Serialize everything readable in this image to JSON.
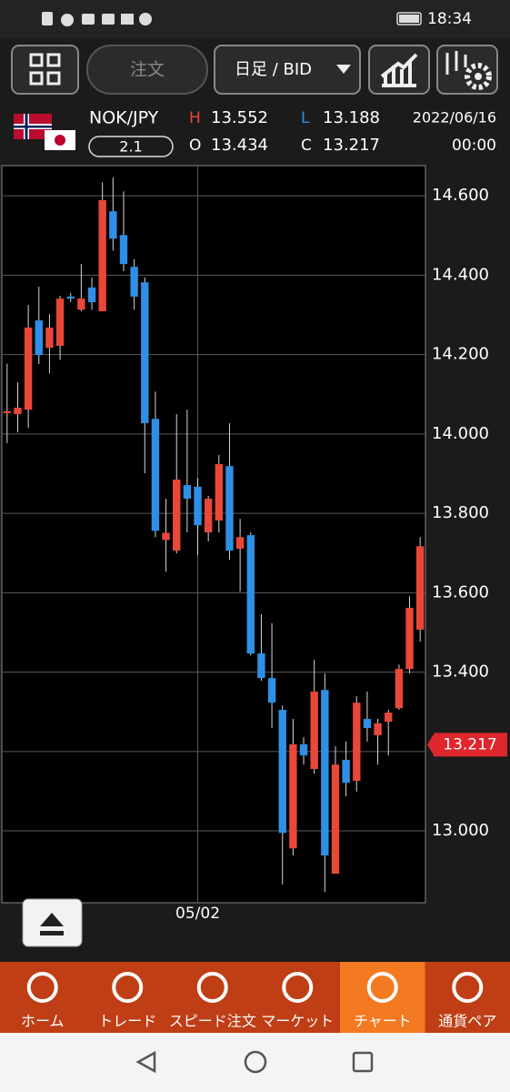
{
  "status_bar": {
    "time": "18:34"
  },
  "toolbar": {
    "order": "注文",
    "period": "日足 / BID"
  },
  "quote": {
    "pair": "NOK/JPY",
    "spread": "2.1",
    "high_label": "H",
    "high": "13.552",
    "low_label": "L",
    "low": "13.188",
    "open_label": "O",
    "open": "13.434",
    "close_label": "C",
    "close": "13.217",
    "date": "2022/06/16",
    "time": "00:00"
  },
  "chart_data": {
    "type": "candlestick",
    "categories": [
      null,
      null,
      null,
      null,
      null,
      null,
      null,
      null,
      null,
      null,
      null,
      null,
      null,
      null,
      null,
      null,
      null,
      null,
      "05/02",
      null,
      null,
      null,
      null,
      null,
      null,
      null,
      null,
      null,
      null,
      null,
      null,
      null,
      null,
      null,
      null,
      null,
      null,
      null,
      null,
      null
    ],
    "open": [
      14.057,
      14.05,
      14.061,
      14.286,
      14.217,
      14.222,
      14.346,
      14.313,
      14.369,
      14.309,
      14.561,
      14.501,
      14.421,
      14.382,
      14.038,
      13.733,
      13.706,
      13.871,
      13.867,
      13.752,
      13.782,
      13.919,
      13.711,
      13.745,
      13.447,
      13.385,
      13.305,
      12.956,
      13.218,
      13.156,
      13.355,
      12.892,
      13.179,
      13.126,
      13.282,
      13.241,
      13.275,
      13.309,
      13.408,
      13.507
    ],
    "high": [
      14.177,
      14.13,
      14.325,
      14.371,
      14.302,
      14.348,
      14.355,
      14.428,
      14.394,
      14.634,
      14.646,
      14.611,
      14.44,
      14.394,
      14.107,
      13.837,
      14.05,
      14.061,
      13.889,
      13.844,
      13.947,
      14.027,
      13.786,
      13.752,
      13.546,
      13.523,
      13.316,
      13.282,
      13.236,
      13.431,
      13.397,
      13.213,
      13.225,
      13.339,
      13.351,
      13.282,
      13.305,
      13.419,
      13.591,
      13.74
    ],
    "low": [
      13.977,
      14.004,
      14.015,
      14.176,
      14.153,
      14.187,
      14.332,
      14.309,
      14.313,
      14.309,
      14.462,
      14.41,
      14.313,
      13.901,
      13.74,
      13.653,
      13.699,
      13.752,
      13.695,
      13.729,
      13.752,
      13.683,
      13.603,
      13.442,
      13.378,
      13.259,
      12.865,
      12.938,
      13.167,
      13.144,
      12.846,
      12.892,
      13.087,
      13.099,
      13.225,
      13.167,
      13.19,
      13.305,
      13.397,
      13.477
    ],
    "close": [
      14.057,
      14.066,
      14.268,
      14.199,
      14.268,
      14.341,
      14.341,
      14.341,
      14.332,
      14.589,
      14.492,
      14.428,
      14.346,
      14.027,
      13.756,
      13.751,
      13.885,
      13.837,
      13.77,
      13.837,
      13.924,
      13.706,
      13.74,
      13.447,
      13.385,
      13.323,
      12.995,
      13.218,
      13.19,
      13.351,
      12.938,
      13.167,
      13.121,
      13.323,
      13.259,
      13.271,
      13.298,
      13.408,
      13.562,
      13.717
    ],
    "up_color": "#e8473a",
    "down_color": "#2f8fe6",
    "ylim": [
      12.819,
      14.676
    ],
    "yticks": [
      {
        "value": 13.0,
        "label": "13.000"
      },
      {
        "value": 13.2,
        "label": "13.200"
      },
      {
        "value": 13.4,
        "label": "13.400"
      },
      {
        "value": 13.6,
        "label": "13.600"
      },
      {
        "value": 13.8,
        "label": "13.800"
      },
      {
        "value": 14.0,
        "label": "14.000"
      },
      {
        "value": 14.2,
        "label": "14.200"
      },
      {
        "value": 14.4,
        "label": "14.400"
      },
      {
        "value": 14.6,
        "label": "14.600"
      }
    ],
    "grid": true,
    "current_price": 13.217
  },
  "nav": {
    "items": [
      "ホーム",
      "トレード",
      "スピード注文",
      "マーケット",
      "チャート",
      "通貨ペア"
    ],
    "active": 4
  }
}
